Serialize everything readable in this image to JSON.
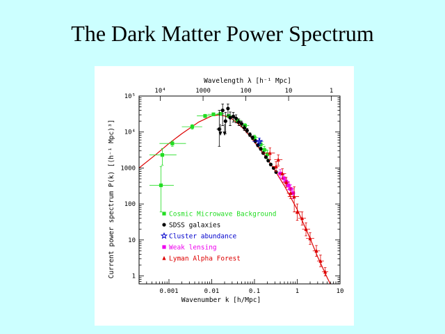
{
  "slide": {
    "title": "The Dark Matter Power Spectrum"
  },
  "colors": {
    "background": "#ccffff",
    "cmb": "#22dd22",
    "sdss": "#000000",
    "cluster": "#0000cc",
    "lensing": "#ee00ee",
    "lyman": "#dd0000",
    "model": "#dd0000"
  },
  "chart_data": {
    "type": "scatter",
    "xlabel": "Wavenumber k [h/Mpc]",
    "ylabel": "Current power spectrum P(k) [(h⁻¹ Mpc)³]",
    "top_xlabel": "Wavelength λ [h⁻¹ Mpc]",
    "xscale": "log",
    "yscale": "log",
    "xlim": [
      0.0002,
      10
    ],
    "ylim": [
      0.6,
      100000
    ],
    "x_ticks": [
      {
        "value": 0.001,
        "label": "0.001"
      },
      {
        "value": 0.01,
        "label": "0.01"
      },
      {
        "value": 0.1,
        "label": "0.1"
      },
      {
        "value": 1,
        "label": "1"
      },
      {
        "value": 10,
        "label": "10"
      }
    ],
    "y_ticks": [
      {
        "value": 1,
        "label": "1"
      },
      {
        "value": 10,
        "label": "10"
      },
      {
        "value": 100,
        "label": "100"
      },
      {
        "value": 1000,
        "label": "1000"
      },
      {
        "value": 10000,
        "label": "10⁴"
      },
      {
        "value": 100000,
        "label": "10⁵"
      }
    ],
    "top_ticks": [
      {
        "k": 0.000628,
        "label": "10⁴"
      },
      {
        "k": 0.00628,
        "label": "1000"
      },
      {
        "k": 0.0628,
        "label": "100"
      },
      {
        "k": 0.628,
        "label": "10"
      },
      {
        "k": 6.28,
        "label": "1"
      }
    ],
    "legend_position": "lower-left",
    "model_curve": {
      "color": "#dd0000",
      "points": [
        [
          0.0002,
          1000
        ],
        [
          0.0005,
          2400
        ],
        [
          0.001,
          4800
        ],
        [
          0.002,
          9000
        ],
        [
          0.005,
          19000
        ],
        [
          0.01,
          28000
        ],
        [
          0.015,
          30000
        ],
        [
          0.02,
          28000
        ],
        [
          0.03,
          23000
        ],
        [
          0.05,
          14000
        ],
        [
          0.08,
          7500
        ],
        [
          0.1,
          5200
        ],
        [
          0.2,
          1800
        ],
        [
          0.3,
          850
        ],
        [
          0.5,
          320
        ],
        [
          1,
          70
        ],
        [
          2,
          11
        ],
        [
          3,
          3.4
        ],
        [
          5,
          0.9
        ],
        [
          7,
          0.4
        ]
      ]
    },
    "series": [
      {
        "name": "Cosmic Microwave Background",
        "marker": "square",
        "color": "#22dd22",
        "points": [
          {
            "x": 0.00065,
            "y": 330,
            "xlo": 0.00035,
            "xhi": 0.0013,
            "ylo": 60,
            "yhi": 1100
          },
          {
            "x": 0.0007,
            "y": 2300,
            "xlo": 0.00035,
            "xhi": 0.0015,
            "ylo": 1200,
            "yhi": 3500
          },
          {
            "x": 0.0012,
            "y": 4800,
            "xlo": 0.0006,
            "xhi": 0.0025,
            "ylo": 4000,
            "yhi": 5600
          },
          {
            "x": 0.0035,
            "y": 14000,
            "xlo": 0.002,
            "xhi": 0.006,
            "ylo": 12000,
            "yhi": 16000
          },
          {
            "x": 0.007,
            "y": 28000,
            "xlo": 0.0045,
            "xhi": 0.011,
            "ylo": 25000,
            "yhi": 31000
          },
          {
            "x": 0.011,
            "y": 31000,
            "xlo": 0.008,
            "xhi": 0.015,
            "ylo": 28000,
            "yhi": 34000
          },
          {
            "x": 0.016,
            "y": 32000,
            "xlo": 0.013,
            "xhi": 0.02,
            "ylo": 29000,
            "yhi": 35000
          },
          {
            "x": 0.025,
            "y": 28000,
            "xlo": 0.02,
            "xhi": 0.032,
            "ylo": 25000,
            "yhi": 31000
          },
          {
            "x": 0.04,
            "y": 21000,
            "xlo": 0.032,
            "xhi": 0.05,
            "ylo": 18500,
            "yhi": 23500
          },
          {
            "x": 0.06,
            "y": 15000,
            "xlo": 0.05,
            "xhi": 0.075,
            "ylo": 13000,
            "yhi": 17000
          },
          {
            "x": 0.1,
            "y": 7000,
            "xlo": 0.085,
            "xhi": 0.12,
            "ylo": 6000,
            "yhi": 8200
          },
          {
            "x": 0.14,
            "y": 4500,
            "xlo": 0.12,
            "xhi": 0.17,
            "ylo": 3800,
            "yhi": 5300
          },
          {
            "x": 0.17,
            "y": 3200,
            "xlo": 0.15,
            "xhi": 0.2,
            "ylo": 2600,
            "yhi": 4000
          },
          {
            "x": 0.2,
            "y": 2400,
            "xlo": 0.18,
            "xhi": 0.23,
            "ylo": 1800,
            "yhi": 3100
          }
        ]
      },
      {
        "name": "SDSS galaxies",
        "marker": "circle",
        "color": "#000000",
        "points": [
          {
            "x": 0.015,
            "y": 12000,
            "xlo": 0.013,
            "xhi": 0.017,
            "ylo": 4000,
            "yhi": 40000
          },
          {
            "x": 0.018,
            "y": 40000,
            "xlo": 0.016,
            "xhi": 0.02,
            "ylo": 15000,
            "yhi": 60000
          },
          {
            "x": 0.021,
            "y": 20000,
            "xlo": 0.019,
            "xhi": 0.023,
            "ylo": 9000,
            "yhi": 35000
          },
          {
            "x": 0.024,
            "y": 45000,
            "xlo": 0.022,
            "xhi": 0.026,
            "ylo": 28000,
            "yhi": 60000
          },
          {
            "x": 0.027,
            "y": 25000,
            "xlo": 0.025,
            "xhi": 0.03,
            "ylo": 15000,
            "yhi": 36000
          },
          {
            "x": 0.032,
            "y": 27000,
            "xlo": 0.029,
            "xhi": 0.035,
            "ylo": 19000,
            "yhi": 35000
          },
          {
            "x": 0.037,
            "y": 24000,
            "xlo": 0.034,
            "xhi": 0.04,
            "ylo": 18000,
            "yhi": 30000
          },
          {
            "x": 0.043,
            "y": 19000,
            "xlo": 0.04,
            "xhi": 0.047,
            "ylo": 15000,
            "yhi": 23000
          },
          {
            "x": 0.05,
            "y": 17000,
            "xlo": 0.046,
            "xhi": 0.054,
            "ylo": 14000,
            "yhi": 20000
          },
          {
            "x": 0.058,
            "y": 13000,
            "xlo": 0.054,
            "xhi": 0.062,
            "ylo": 11000,
            "yhi": 15000
          },
          {
            "x": 0.067,
            "y": 11000,
            "xlo": 0.063,
            "xhi": 0.071,
            "ylo": 9500,
            "yhi": 12500
          },
          {
            "x": 0.078,
            "y": 8500,
            "xlo": 0.073,
            "xhi": 0.083,
            "ylo": 7500,
            "yhi": 9500
          },
          {
            "x": 0.09,
            "y": 7000,
            "xlo": 0.085,
            "xhi": 0.095,
            "ylo": 6200,
            "yhi": 7800
          },
          {
            "x": 0.105,
            "y": 5600,
            "xlo": 0.1,
            "xhi": 0.11,
            "ylo": 5000,
            "yhi": 6200
          },
          {
            "x": 0.12,
            "y": 4300,
            "xlo": 0.115,
            "xhi": 0.126,
            "ylo": 3900,
            "yhi": 4700
          },
          {
            "x": 0.14,
            "y": 3400,
            "xlo": 0.134,
            "xhi": 0.146,
            "ylo": 3100,
            "yhi": 3700
          },
          {
            "x": 0.16,
            "y": 2600,
            "xlo": 0.154,
            "xhi": 0.166,
            "ylo": 2400,
            "yhi": 2800
          },
          {
            "x": 0.185,
            "y": 2000,
            "xlo": 0.178,
            "xhi": 0.192,
            "ylo": 1850,
            "yhi": 2150
          },
          {
            "x": 0.21,
            "y": 1600,
            "xlo": 0.203,
            "xhi": 0.217,
            "ylo": 1480,
            "yhi": 1720
          },
          {
            "x": 0.24,
            "y": 1250,
            "xlo": 0.233,
            "xhi": 0.247,
            "ylo": 1150,
            "yhi": 1350
          },
          {
            "x": 0.28,
            "y": 1000,
            "xlo": 0.272,
            "xhi": 0.288,
            "ylo": 920,
            "yhi": 1080
          },
          {
            "x": 0.32,
            "y": 770,
            "xlo": 0.312,
            "xhi": 0.328,
            "ylo": 710,
            "yhi": 830
          }
        ]
      },
      {
        "name": "Cluster abundance",
        "marker": "star",
        "color": "#0000cc",
        "points": [
          {
            "x": 0.13,
            "y": 5500,
            "xlo": 0.09,
            "xhi": 0.16,
            "ylo": 4200,
            "yhi": 6800
          }
        ]
      },
      {
        "name": "Weak lensing",
        "marker": "square",
        "color": "#ee00ee",
        "points": [
          {
            "x": 0.4,
            "y": 700,
            "xlo": 0.35,
            "xhi": 0.46,
            "ylo": 520,
            "yhi": 900
          },
          {
            "x": 0.48,
            "y": 520,
            "xlo": 0.42,
            "xhi": 0.55,
            "ylo": 400,
            "yhi": 660
          },
          {
            "x": 0.55,
            "y": 420,
            "xlo": 0.49,
            "xhi": 0.62,
            "ylo": 330,
            "yhi": 520
          },
          {
            "x": 0.62,
            "y": 330,
            "xlo": 0.56,
            "xhi": 0.7,
            "ylo": 250,
            "yhi": 420
          },
          {
            "x": 0.7,
            "y": 260,
            "xlo": 0.63,
            "xhi": 0.78,
            "ylo": 190,
            "yhi": 340
          },
          {
            "x": 0.8,
            "y": 200,
            "xlo": 0.72,
            "xhi": 0.9,
            "ylo": 140,
            "yhi": 270
          }
        ]
      },
      {
        "name": "Lyman Alpha Forest",
        "marker": "triangle",
        "color": "#dd0000",
        "points": [
          {
            "x": 0.23,
            "y": 2600,
            "xlo": 0.15,
            "xhi": 0.3,
            "ylo": 1700,
            "yhi": 3600
          },
          {
            "x": 0.32,
            "y": 1100,
            "xlo": 0.26,
            "xhi": 0.38,
            "ylo": 800,
            "yhi": 1500
          },
          {
            "x": 0.36,
            "y": 1700,
            "xlo": 0.29,
            "xhi": 0.45,
            "ylo": 1200,
            "yhi": 2300
          },
          {
            "x": 0.45,
            "y": 700,
            "xlo": 0.37,
            "xhi": 0.55,
            "ylo": 500,
            "yhi": 950
          },
          {
            "x": 0.55,
            "y": 400,
            "xlo": 0.45,
            "xhi": 0.67,
            "ylo": 290,
            "yhi": 550
          },
          {
            "x": 0.7,
            "y": 200,
            "xlo": 0.57,
            "xhi": 0.85,
            "ylo": 140,
            "yhi": 280
          },
          {
            "x": 0.85,
            "y": 160,
            "xlo": 0.6,
            "xhi": 1.1,
            "ylo": 60,
            "yhi": 300
          },
          {
            "x": 1.0,
            "y": 60,
            "xlo": 0.8,
            "xhi": 1.3,
            "ylo": 35,
            "yhi": 100
          },
          {
            "x": 1.3,
            "y": 40,
            "xlo": 1.05,
            "xhi": 1.6,
            "ylo": 26,
            "yhi": 60
          },
          {
            "x": 1.6,
            "y": 20,
            "xlo": 1.3,
            "xhi": 2.0,
            "ylo": 13,
            "yhi": 30
          },
          {
            "x": 2.0,
            "y": 11,
            "xlo": 1.6,
            "xhi": 2.5,
            "ylo": 7.5,
            "yhi": 16
          },
          {
            "x": 2.8,
            "y": 5,
            "xlo": 2.3,
            "xhi": 3.4,
            "ylo": 3.5,
            "yhi": 7
          },
          {
            "x": 3.5,
            "y": 2.6,
            "xlo": 2.9,
            "xhi": 4.2,
            "ylo": 1.8,
            "yhi": 3.8
          },
          {
            "x": 4.5,
            "y": 1.3,
            "xlo": 3.8,
            "xhi": 5.3,
            "ylo": 1.0,
            "yhi": 1.7
          }
        ]
      }
    ],
    "annotations": [
      {
        "type": "upper-limit-arrow",
        "x": 0.016,
        "y": 9000,
        "color": "#000000"
      },
      {
        "type": "upper-limit-arrow",
        "x": 0.02,
        "y": 9000,
        "color": "#000000"
      }
    ]
  }
}
